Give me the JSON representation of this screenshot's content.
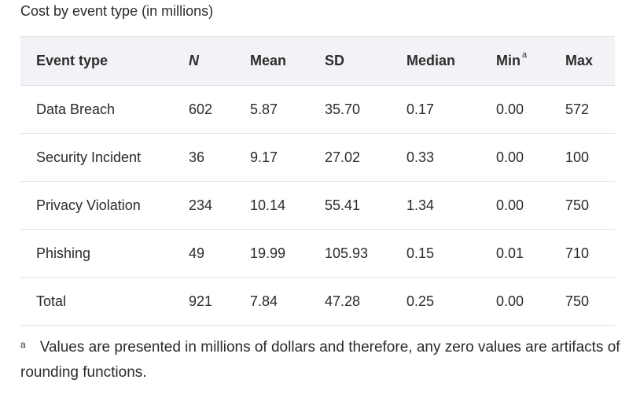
{
  "caption": "Cost by event type (in millions)",
  "table": {
    "headers": {
      "event_type": "Event type",
      "n": "N",
      "mean": "Mean",
      "sd": "SD",
      "median": "Median",
      "min": "Min",
      "min_note": "a",
      "max": "Max"
    },
    "rows": [
      {
        "event_type": "Data Breach",
        "n": "602",
        "mean": "5.87",
        "sd": "35.70",
        "median": "0.17",
        "min": "0.00",
        "max": "572"
      },
      {
        "event_type": "Security Incident",
        "n": "36",
        "mean": "9.17",
        "sd": "27.02",
        "median": "0.33",
        "min": "0.00",
        "max": "100"
      },
      {
        "event_type": "Privacy Violation",
        "n": "234",
        "mean": "10.14",
        "sd": "55.41",
        "median": "1.34",
        "min": "0.00",
        "max": "750"
      },
      {
        "event_type": "Phishing",
        "n": "49",
        "mean": "19.99",
        "sd": "105.93",
        "median": "0.15",
        "min": "0.01",
        "max": "710"
      },
      {
        "event_type": "Total",
        "n": "921",
        "mean": "7.84",
        "sd": "47.28",
        "median": "0.25",
        "min": "0.00",
        "max": "750"
      }
    ]
  },
  "footnote": {
    "mark": "a",
    "text": "Values are presented in millions of dollars and therefore, any zero values are artifacts of rounding functions."
  }
}
